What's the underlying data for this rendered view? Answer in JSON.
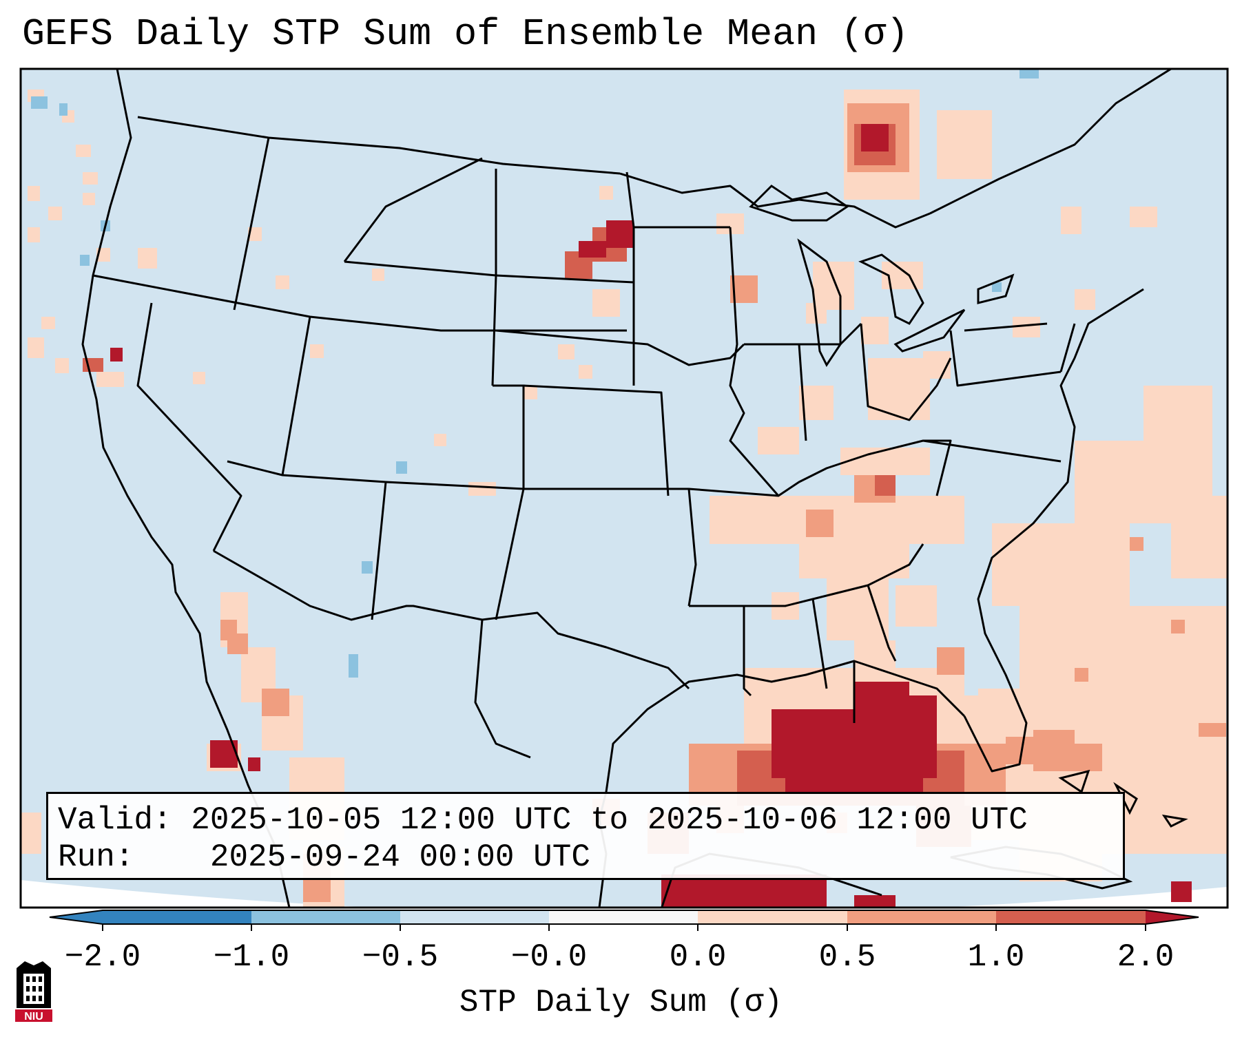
{
  "title": "GEFS Daily STP Sum of Ensemble Mean (σ)",
  "info": {
    "valid_label": "Valid:",
    "valid_value": "2025-10-05 12:00 UTC to 2025-10-06 12:00 UTC",
    "run_label": "Run:",
    "run_value": "2025-09-24 00:00 UTC"
  },
  "colorbar": {
    "label": "STP Daily Sum (σ)",
    "ticks": [
      "−2.0",
      "−1.0",
      "−0.5",
      "−0.0",
      "0.0",
      "0.5",
      "1.0",
      "2.0"
    ],
    "colors": [
      "#3383be",
      "#8cc2df",
      "#d2e4f0",
      "#f7f7f7",
      "#fcd8c4",
      "#f09e80",
      "#d45f4f",
      "#b2182b"
    ],
    "extend": "both"
  },
  "map": {
    "projection": "Lambert conformal, CONUS",
    "ocean_color": "#d2e4f0",
    "outside_color": "#ffffff",
    "border_color": "#000000"
  },
  "logo": {
    "text": "NIU",
    "colors": [
      "#c8102e",
      "#000000"
    ]
  }
}
